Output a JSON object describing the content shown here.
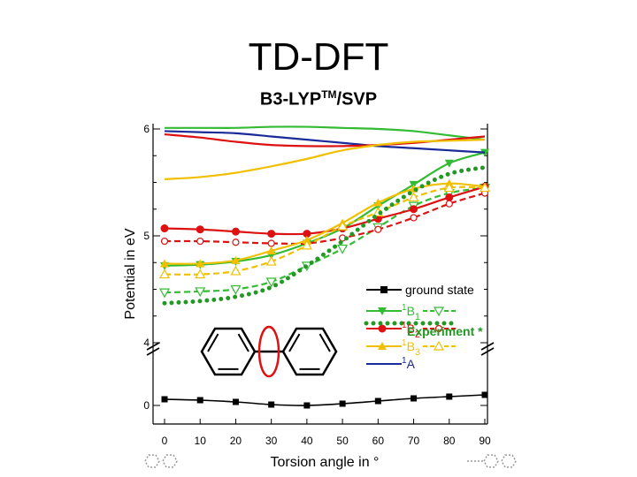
{
  "title": "TD-DFT",
  "subtitle_main": "B3-LYP",
  "subtitle_sup": "TM",
  "subtitle_tail": "/SVP",
  "chart_data": {
    "type": "line",
    "title": "TD-DFT",
    "subtitle": "B3-LYP TM/SVP",
    "xlabel": "Torsion angle in °",
    "ylabel": "Potential in eV",
    "x": [
      0,
      10,
      20,
      30,
      40,
      50,
      60,
      70,
      80,
      90
    ],
    "x_ticks": [
      "0",
      "10",
      "20",
      "30",
      "40",
      "50",
      "60",
      "70",
      "80",
      "90"
    ],
    "xlim": [
      0,
      90
    ],
    "y_ticks": [
      "0",
      "4",
      "5",
      "6"
    ],
    "y_axis_break": "between 0 and 4",
    "grid": false,
    "legend_position": "right",
    "legend_note": "Experiment *",
    "series": [
      {
        "name": "ground state",
        "color": "#000000",
        "marker": "square",
        "style": "solid",
        "values": [
          0.07,
          0.06,
          0.04,
          0.01,
          0.0,
          0.02,
          0.05,
          0.08,
          0.1,
          0.12
        ]
      },
      {
        "name": "1B1",
        "color": "#33bb33",
        "marker": "triangle-down",
        "style": "solid",
        "values": [
          4.72,
          4.73,
          4.76,
          4.82,
          4.93,
          5.07,
          5.28,
          5.48,
          5.68,
          5.78
        ]
      },
      {
        "name": "1B1 experiment",
        "color": "#33bb33",
        "marker": "open-triangle-down",
        "style": "dashed",
        "values": [
          4.47,
          4.48,
          4.5,
          4.57,
          4.72,
          4.88,
          5.08,
          5.28,
          5.4,
          5.45
        ]
      },
      {
        "name": "1B2",
        "color": "#dd1111",
        "marker": "circle",
        "style": "solid",
        "values": [
          5.07,
          5.06,
          5.04,
          5.02,
          5.02,
          5.07,
          5.16,
          5.25,
          5.36,
          5.46
        ]
      },
      {
        "name": "1B2 experiment",
        "color": "#dd1111",
        "marker": "open-circle",
        "style": "dashed",
        "values": [
          4.95,
          4.95,
          4.94,
          4.93,
          4.93,
          4.98,
          5.06,
          5.17,
          5.3,
          5.4
        ]
      },
      {
        "name": "1B3",
        "color": "#f0c000",
        "marker": "triangle-up",
        "style": "solid",
        "values": [
          4.74,
          4.74,
          4.77,
          4.86,
          4.96,
          5.12,
          5.31,
          5.44,
          5.49,
          5.46
        ]
      },
      {
        "name": "1B3 experiment",
        "color": "#f0c000",
        "marker": "open-triangle-up",
        "style": "dashed",
        "values": [
          4.64,
          4.64,
          4.67,
          4.76,
          4.91,
          5.09,
          5.22,
          5.36,
          5.45,
          5.45
        ]
      },
      {
        "name": "1A",
        "color": "#1a2a99",
        "marker": "none",
        "style": "solid",
        "values": [
          5.98,
          5.97,
          5.96,
          5.93,
          5.9,
          5.87,
          5.84,
          5.82,
          5.8,
          5.78
        ]
      },
      {
        "name": "green unlabeled (no marker)",
        "color": "#33bb33",
        "marker": "none",
        "style": "solid",
        "values": [
          6.01,
          6.01,
          6.01,
          6.02,
          6.02,
          6.01,
          6.0,
          5.98,
          5.94,
          5.9
        ]
      },
      {
        "name": "red unlabeled (no marker)",
        "color": "#dd1111",
        "marker": "none",
        "style": "solid",
        "values": [
          5.95,
          5.92,
          5.88,
          5.85,
          5.84,
          5.84,
          5.85,
          5.87,
          5.9,
          5.93
        ]
      },
      {
        "name": "yellow unlabeled (no marker)",
        "color": "#f0c000",
        "marker": "none",
        "style": "solid",
        "values": [
          5.53,
          5.55,
          5.59,
          5.65,
          5.72,
          5.8,
          5.85,
          5.88,
          5.89,
          5.9
        ]
      },
      {
        "name": "green dotted",
        "color": "#229922",
        "marker": "dots",
        "style": "dotted",
        "values": [
          4.37,
          4.39,
          4.43,
          4.52,
          4.72,
          4.95,
          5.2,
          5.42,
          5.58,
          5.64
        ]
      }
    ]
  },
  "legend": {
    "items": [
      {
        "label": "ground state",
        "sub": ""
      },
      {
        "label": "B",
        "sup": "1",
        "sub": "1"
      },
      {
        "label": "B",
        "sup": "1",
        "sub": "2"
      },
      {
        "label": "B",
        "sup": "1",
        "sub": "3"
      },
      {
        "label": "A",
        "sup": "1",
        "sub": ""
      }
    ],
    "note": "Experiment *"
  }
}
